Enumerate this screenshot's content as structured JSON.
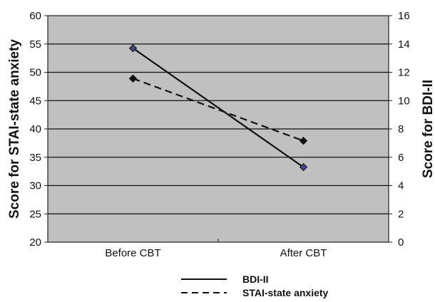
{
  "chart_data": {
    "type": "line",
    "categories": [
      "Before CBT",
      "After CBT"
    ],
    "y_left": {
      "label": "Score for STAI-state anxiety",
      "lim": [
        20,
        60
      ],
      "ticks": [
        20,
        25,
        30,
        35,
        40,
        45,
        50,
        55,
        60
      ]
    },
    "y_right": {
      "label": "Score for BDI-II",
      "lim": [
        0,
        16
      ],
      "ticks": [
        0,
        2,
        4,
        6,
        8,
        10,
        12,
        14,
        16
      ]
    },
    "series": [
      {
        "name": "BDI-II",
        "axis": "right",
        "line_style": "solid",
        "marker": "diamond",
        "marker_color": "#3b4a8c",
        "values": [
          13.7,
          5.3
        ]
      },
      {
        "name": "STAI-state anxiety",
        "axis": "left",
        "line_style": "dashed",
        "marker": "diamond",
        "marker_color": "#111111",
        "values": [
          48.9,
          37.9
        ]
      }
    ],
    "grid": true,
    "plot_background": "#c0c0c0",
    "legend_position": "bottom"
  }
}
